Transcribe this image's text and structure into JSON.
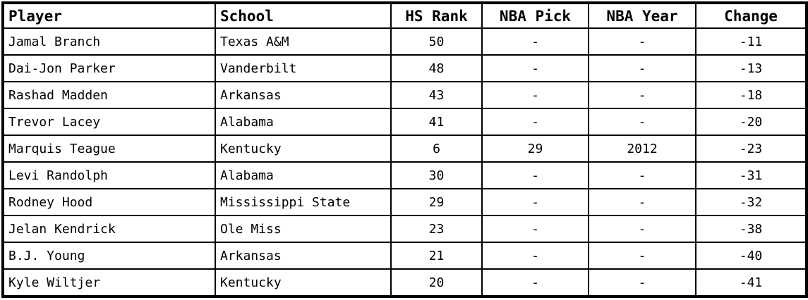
{
  "table": {
    "headers": [
      "Player",
      "School",
      "HS Rank",
      "NBA Pick",
      "NBA Year",
      "Change"
    ],
    "rows": [
      [
        "Jamal Branch",
        "Texas A&M",
        "50",
        "-",
        "-",
        "-11"
      ],
      [
        "Dai-Jon Parker",
        "Vanderbilt",
        "48",
        "-",
        "-",
        "-13"
      ],
      [
        "Rashad Madden",
        "Arkansas",
        "43",
        "-",
        "-",
        "-18"
      ],
      [
        "Trevor Lacey",
        "Alabama",
        "41",
        "-",
        "-",
        "-20"
      ],
      [
        "Marquis Teague",
        "Kentucky",
        "6",
        "29",
        "2012",
        "-23"
      ],
      [
        "Levi Randolph",
        "Alabama",
        "30",
        "-",
        "-",
        "-31"
      ],
      [
        "Rodney Hood",
        "Mississippi State",
        "29",
        "-",
        "-",
        "-32"
      ],
      [
        "Jelan Kendrick",
        "Ole Miss",
        "23",
        "-",
        "-",
        "-38"
      ],
      [
        "B.J. Young",
        "Arkansas",
        "21",
        "-",
        "-",
        "-40"
      ],
      [
        "Kyle Wiltjer",
        "Kentucky",
        "20",
        "-",
        "-",
        "-41"
      ]
    ]
  }
}
